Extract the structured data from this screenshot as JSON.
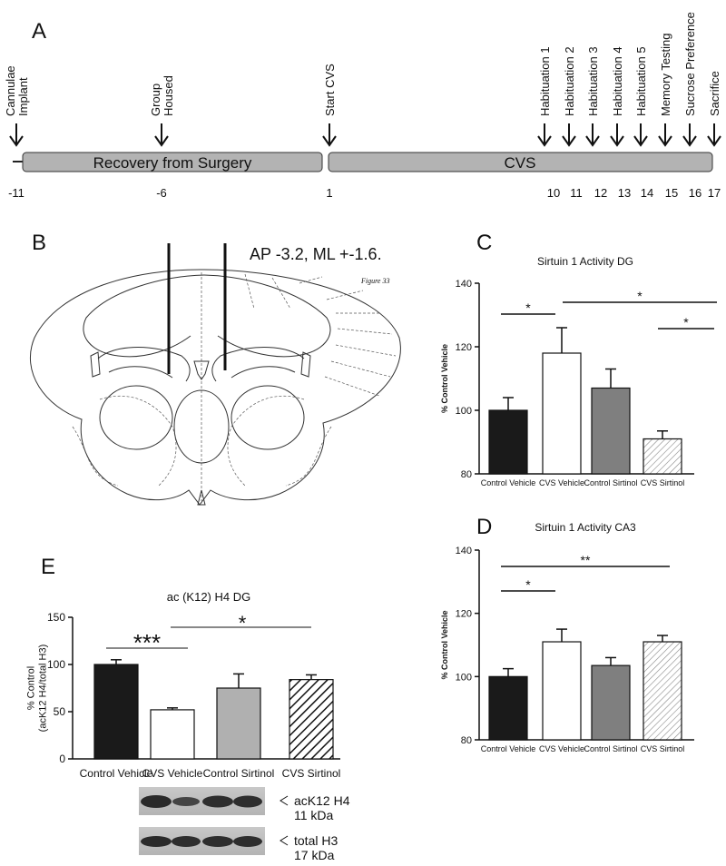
{
  "panel_a": {
    "letter": "A",
    "phases": [
      "Recovery from Surgery",
      "CVS"
    ],
    "events": [
      {
        "label": [
          "Cannulae",
          "Implant"
        ],
        "day": -11
      },
      {
        "label": [
          "Group",
          "Housed"
        ],
        "day": -6
      },
      {
        "label": [
          "Start CVS"
        ],
        "day": 1
      },
      {
        "label": [
          "Habituation 1"
        ],
        "day": 10
      },
      {
        "label": [
          "Habituation 2"
        ],
        "day": 11
      },
      {
        "label": [
          "Habituation 3"
        ],
        "day": 12
      },
      {
        "label": [
          "Habituation 4"
        ],
        "day": 13
      },
      {
        "label": [
          "Habituation 5"
        ],
        "day": 14
      },
      {
        "label": [
          "Memory Testing"
        ],
        "day": 15
      },
      {
        "label": [
          "Sucrose Preference"
        ],
        "day": 16
      },
      {
        "label": [
          "Sacrifice"
        ],
        "day": 17
      }
    ]
  },
  "panel_b": {
    "letter": "B",
    "coordinates": "AP -3.2, ML +-1.6.",
    "atlas_figure": "Figure 33"
  },
  "chart_data": [
    {
      "type": "bar",
      "panel": "C",
      "title": "Sirtuin 1 Activity DG",
      "ylabel": [
        "% Control Vehicle"
      ],
      "categories": [
        "Control Vehicle",
        "CVS Vehicle",
        "Control Sirtinol",
        "CVS Sirtinol"
      ],
      "values": [
        100,
        118,
        107,
        91
      ],
      "errors": [
        4,
        8,
        6,
        2.5
      ],
      "colors": [
        "#1a1a1a",
        "#ffffff",
        "#7f7f7f",
        "#ffffff"
      ],
      "hatch": [
        false,
        false,
        false,
        true
      ],
      "ylim": [
        80,
        140
      ],
      "yticks": [
        80,
        100,
        120,
        140
      ],
      "annotations": [
        "*",
        "*",
        "*"
      ]
    },
    {
      "type": "bar",
      "panel": "D",
      "title": "Sirtuin 1 Activity CA3",
      "ylabel": [
        "% Control Vehicle"
      ],
      "categories": [
        "Control Vehicle",
        "CVS Vehicle",
        "Control Sirtinol",
        "CVS Sirtinol"
      ],
      "values": [
        100,
        111,
        103.5,
        111
      ],
      "errors": [
        2.5,
        4,
        2.5,
        2
      ],
      "colors": [
        "#1a1a1a",
        "#ffffff",
        "#7f7f7f",
        "#ffffff"
      ],
      "hatch": [
        false,
        false,
        false,
        true
      ],
      "ylim": [
        80,
        140
      ],
      "yticks": [
        80,
        100,
        120,
        140
      ],
      "annotations": [
        "*",
        "**"
      ]
    },
    {
      "type": "bar",
      "panel": "E",
      "title": "ac (K12) H4 DG",
      "ylabel": [
        "% Control",
        "(acK12 H4/total H3)"
      ],
      "categories": [
        "Control Vehicle",
        "CVS Vehicle",
        "Control Sirtinol",
        "CVS Sirtinol"
      ],
      "values": [
        100,
        52,
        75,
        84
      ],
      "errors": [
        5,
        2,
        15,
        5
      ],
      "colors": [
        "#1a1a1a",
        "#ffffff",
        "#b0b0b0",
        "#ffffff"
      ],
      "hatch": [
        false,
        false,
        false,
        true
      ],
      "ylim": [
        0,
        150
      ],
      "yticks": [
        0,
        50,
        100,
        150
      ],
      "annotations": [
        "***",
        "*"
      ]
    }
  ],
  "blots": [
    {
      "label": "acK12 H4",
      "size": "11 kDa"
    },
    {
      "label": "total H3",
      "size": "17 kDa"
    }
  ]
}
